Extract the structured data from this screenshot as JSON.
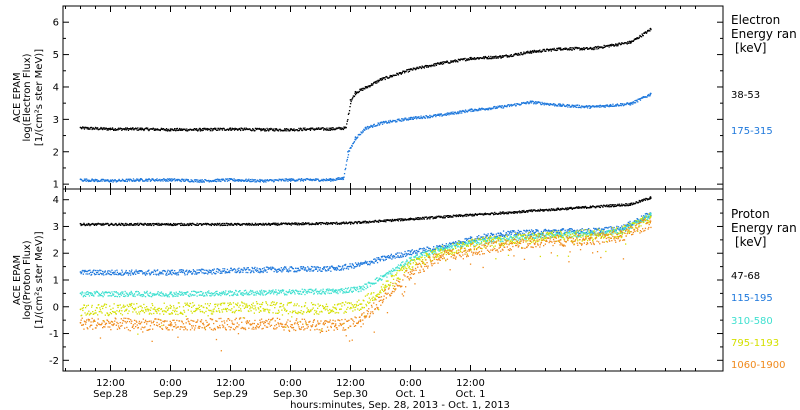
{
  "chart_data": [
    {
      "type": "scatter",
      "panel": "electron",
      "ylabel": [
        "ACE EPAM",
        "log(Electron Flux)",
        "[1/(cm²s ster MeV)]"
      ],
      "ylim": [
        0.85,
        6.5
      ],
      "yticks": [
        1,
        2,
        3,
        4,
        5,
        6
      ],
      "legend_title": [
        "Electron",
        "Energy ran",
        "[keV]"
      ],
      "series": [
        {
          "name": "38-53",
          "color": "#000000",
          "x": [
            -6,
            0,
            6,
            12,
            18,
            24,
            30,
            36,
            40,
            44,
            47,
            48,
            49,
            51,
            54,
            60,
            66,
            72,
            78,
            84,
            90,
            96,
            100,
            104,
            108
          ],
          "y": [
            2.75,
            2.72,
            2.72,
            2.7,
            2.7,
            2.72,
            2.7,
            2.7,
            2.72,
            2.72,
            2.75,
            3.6,
            3.85,
            4.0,
            4.25,
            4.55,
            4.75,
            4.9,
            4.95,
            5.1,
            5.2,
            5.2,
            5.3,
            5.4,
            5.8
          ]
        },
        {
          "name": "175-315",
          "color": "#1e78dc",
          "x": [
            -6,
            0,
            6,
            12,
            18,
            24,
            30,
            36,
            40,
            44,
            46.5,
            47.5,
            49,
            51,
            54,
            60,
            66,
            72,
            78,
            84,
            90,
            96,
            100,
            104,
            108
          ],
          "y": [
            1.15,
            1.12,
            1.15,
            1.15,
            1.12,
            1.15,
            1.12,
            1.15,
            1.15,
            1.15,
            1.2,
            2.0,
            2.45,
            2.75,
            2.9,
            3.05,
            3.15,
            3.3,
            3.4,
            3.55,
            3.45,
            3.4,
            3.45,
            3.5,
            3.8
          ]
        }
      ]
    },
    {
      "type": "scatter",
      "panel": "proton",
      "ylabel": [
        "ACE EPAM",
        "log(Proton Flux)",
        "[1/(cm²s ster MeV)]"
      ],
      "ylim": [
        -2.4,
        4.4
      ],
      "yticks": [
        -2,
        -1,
        0,
        1,
        2,
        3,
        4
      ],
      "legend_title": [
        "Proton",
        "Energy ran",
        "[keV]"
      ],
      "series": [
        {
          "name": "47-68",
          "color": "#000000",
          "x": [
            -6,
            12,
            30,
            48,
            60,
            72,
            84,
            96,
            104,
            108
          ],
          "y": [
            3.1,
            3.1,
            3.1,
            3.15,
            3.3,
            3.45,
            3.6,
            3.75,
            3.85,
            4.1
          ]
        },
        {
          "name": "115-195",
          "color": "#1e78dc",
          "x": [
            -6,
            12,
            30,
            45,
            50,
            55,
            60,
            66,
            72,
            78,
            84,
            90,
            96,
            102,
            108
          ],
          "y": [
            1.3,
            1.3,
            1.4,
            1.45,
            1.6,
            1.85,
            2.05,
            2.25,
            2.55,
            2.75,
            2.8,
            2.85,
            2.85,
            2.95,
            3.5
          ]
        },
        {
          "name": "310-580",
          "color": "#40e0d0",
          "x": [
            -6,
            12,
            30,
            45,
            50,
            55,
            60,
            66,
            72,
            78,
            84,
            90,
            96,
            102,
            108
          ],
          "y": [
            0.5,
            0.5,
            0.55,
            0.6,
            0.7,
            1.2,
            1.8,
            2.2,
            2.4,
            2.55,
            2.65,
            2.7,
            2.75,
            2.85,
            3.45
          ]
        },
        {
          "name": "795-1193",
          "color": "#d4e000",
          "x": [
            -6,
            12,
            30,
            45,
            50,
            55,
            60,
            66,
            72,
            78,
            84,
            90,
            96,
            102,
            108
          ],
          "y": [
            -0.1,
            -0.05,
            0.0,
            -0.05,
            0.1,
            0.8,
            1.6,
            2.1,
            2.35,
            2.5,
            2.6,
            2.65,
            2.7,
            2.8,
            3.35
          ]
        },
        {
          "name": "1060-1900",
          "color": "#f08a1c",
          "x": [
            -6,
            12,
            30,
            45,
            50,
            55,
            60,
            66,
            72,
            78,
            84,
            90,
            96,
            102,
            108
          ],
          "y": [
            -0.6,
            -0.65,
            -0.6,
            -0.7,
            -0.5,
            0.5,
            1.3,
            1.9,
            2.15,
            2.3,
            2.45,
            2.5,
            2.55,
            2.65,
            3.2
          ]
        }
      ]
    }
  ],
  "x_axis": {
    "xlim": [
      -9.5,
      122.5
    ],
    "ticks": [
      {
        "x": 0,
        "line1": "12:00",
        "line2": "Sep.28"
      },
      {
        "x": 12,
        "line1": "0:00",
        "line2": "Sep.29"
      },
      {
        "x": 24,
        "line1": "12:00",
        "line2": "Sep.29"
      },
      {
        "x": 36,
        "line1": "0:00",
        "line2": "Sep.30"
      },
      {
        "x": 48,
        "line1": "12:00",
        "line2": "Sep.30"
      },
      {
        "x": 60,
        "line1": "0:00",
        "line2": "Oct. 1"
      },
      {
        "x": 72,
        "line1": "12:00",
        "line2": "Oct. 1"
      }
    ],
    "xlabel": "hours:minutes, Sep. 28, 2013 - Oct. 1, 2013"
  }
}
